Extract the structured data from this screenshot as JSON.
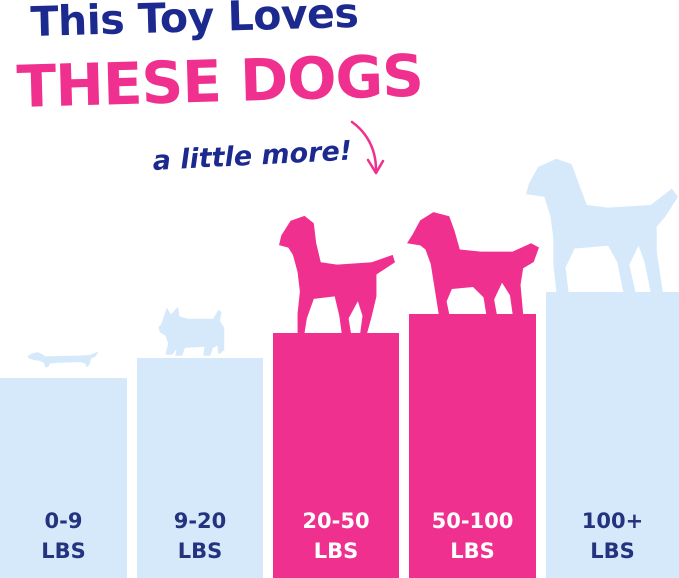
{
  "headline": {
    "line1": "This Toy Loves",
    "line2": "THESE DOGS",
    "line3": "a little more!"
  },
  "colors": {
    "light_bar": "#d5e9fb",
    "highlight_bar": "#f0308f",
    "light_label": "#24337d",
    "highlight_label": "#ffffff",
    "dark_blue": "#1c2a8f",
    "pink": "#f0308f",
    "dog_light": "#d5e9fb",
    "dog_highlight": "#f0308f"
  },
  "chart_data": {
    "type": "bar",
    "categories": [
      [
        "0-9",
        "LBS"
      ],
      [
        "9-20",
        "LBS"
      ],
      [
        "20-50",
        "LBS"
      ],
      [
        "50-100",
        "LBS"
      ],
      [
        "100+",
        "LBS"
      ]
    ],
    "highlighted": [
      false,
      false,
      true,
      true,
      false
    ],
    "dog_icons": [
      "dachshund-icon",
      "scottish-terrier-icon",
      "labrador-icon",
      "golden-retriever-icon",
      "great-dane-icon"
    ],
    "values": [
      1,
      2,
      3,
      4,
      5
    ],
    "ylim": [
      0,
      5
    ]
  }
}
